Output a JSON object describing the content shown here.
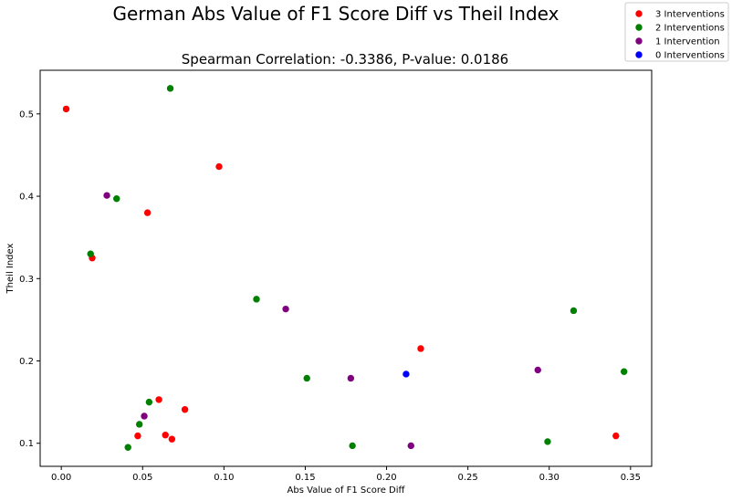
{
  "chart_data": {
    "type": "scatter",
    "title": "German Abs Value of F1 Score Diff vs Theil Index",
    "subtitle": "Spearman Correlation: -0.3386, P-value: 0.0186",
    "xlabel": "Abs Value of F1 Score Diff",
    "ylabel": "Theil Index",
    "xlim": [
      -0.013,
      0.363
    ],
    "ylim": [
      0.072,
      0.553
    ],
    "xticks": [
      "0.00",
      "0.05",
      "0.10",
      "0.15",
      "0.20",
      "0.25",
      "0.30",
      "0.35"
    ],
    "xtick_values": [
      0,
      0.05,
      0.1,
      0.15,
      0.2,
      0.25,
      0.3,
      0.35
    ],
    "yticks": [
      "0.1",
      "0.2",
      "0.3",
      "0.4",
      "0.5"
    ],
    "ytick_values": [
      0.1,
      0.2,
      0.3,
      0.4,
      0.5
    ],
    "grid": false,
    "legend_position": "top-right",
    "series": [
      {
        "name": "3 Interventions",
        "color": "#ff0000",
        "points": [
          [
            0.003,
            0.506
          ],
          [
            0.097,
            0.436
          ],
          [
            0.053,
            0.38
          ],
          [
            0.019,
            0.325
          ],
          [
            0.221,
            0.215
          ],
          [
            0.06,
            0.153
          ],
          [
            0.076,
            0.141
          ],
          [
            0.047,
            0.109
          ],
          [
            0.064,
            0.11
          ],
          [
            0.068,
            0.105
          ],
          [
            0.341,
            0.109
          ]
        ]
      },
      {
        "name": "2 Interventions",
        "color": "#008000",
        "points": [
          [
            0.067,
            0.531
          ],
          [
            0.034,
            0.397
          ],
          [
            0.018,
            0.33
          ],
          [
            0.12,
            0.275
          ],
          [
            0.315,
            0.261
          ],
          [
            0.346,
            0.187
          ],
          [
            0.151,
            0.179
          ],
          [
            0.054,
            0.15
          ],
          [
            0.048,
            0.123
          ],
          [
            0.041,
            0.095
          ],
          [
            0.179,
            0.097
          ],
          [
            0.299,
            0.102
          ]
        ]
      },
      {
        "name": "1 Intervention",
        "color": "#800080",
        "points": [
          [
            0.028,
            0.401
          ],
          [
            0.138,
            0.263
          ],
          [
            0.178,
            0.179
          ],
          [
            0.051,
            0.133
          ],
          [
            0.293,
            0.189
          ],
          [
            0.215,
            0.097
          ]
        ]
      },
      {
        "name": "0 Interventions",
        "color": "#0000ff",
        "points": [
          [
            0.212,
            0.184
          ]
        ]
      }
    ]
  }
}
